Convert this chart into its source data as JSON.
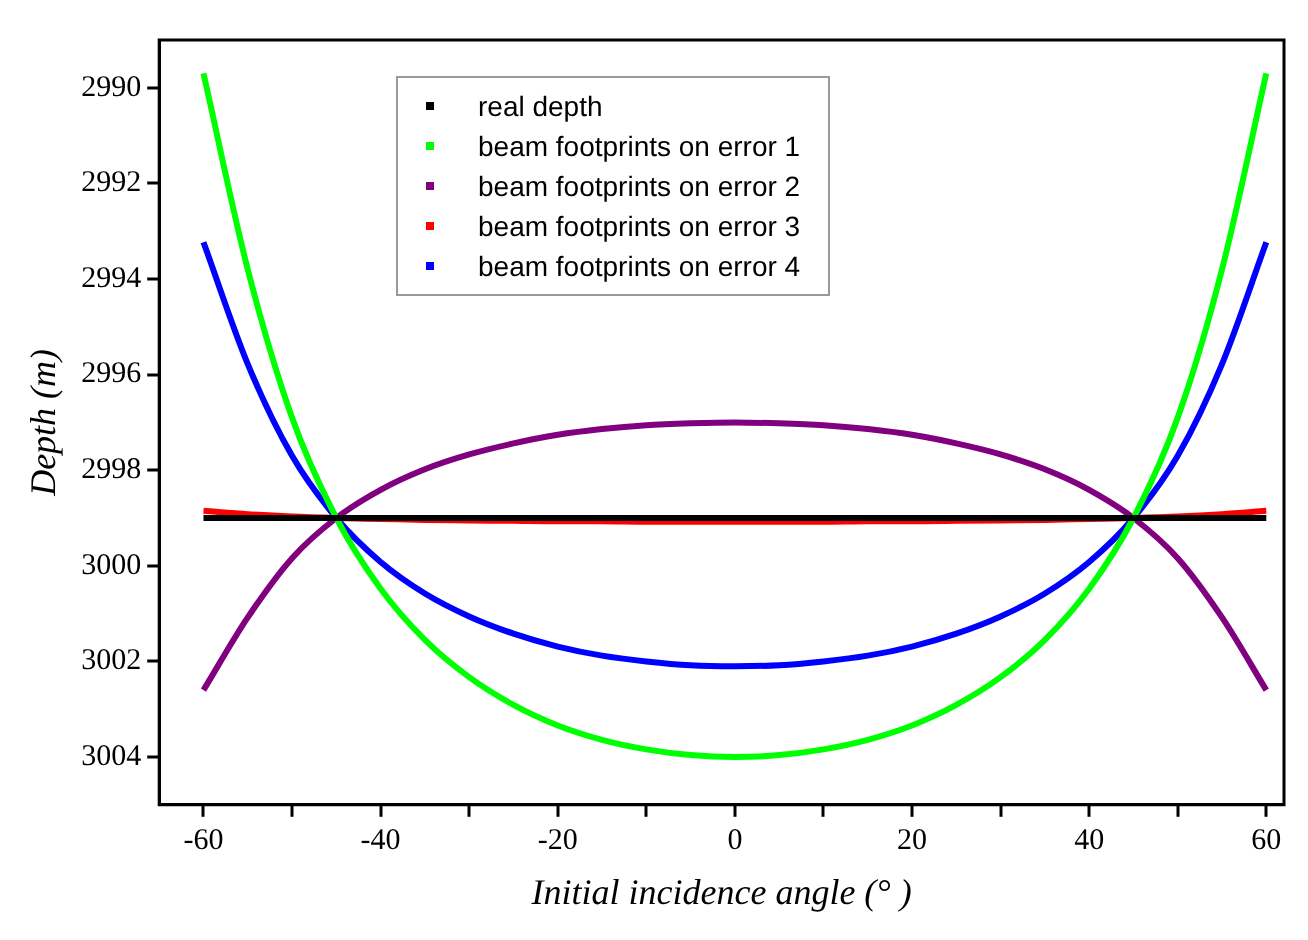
{
  "chart_data": {
    "type": "line",
    "xlabel": "Initial incidence angle (° )",
    "ylabel": "Depth (m)",
    "x": [
      -60,
      -55,
      -50,
      -45,
      -40,
      -35,
      -30,
      -25,
      -20,
      -15,
      -10,
      -5,
      0,
      5,
      10,
      15,
      20,
      25,
      30,
      35,
      40,
      45,
      50,
      55,
      60
    ],
    "series": [
      {
        "name": "real depth",
        "color": "#000000",
        "values": [
          2999,
          2999,
          2999,
          2999,
          2999,
          2999,
          2999,
          2999,
          2999,
          2999,
          2999,
          2999,
          2999,
          2999,
          2999,
          2999,
          2999,
          2999,
          2999,
          2999,
          2999,
          2999,
          2999,
          2999,
          2999
        ]
      },
      {
        "name": "beam footprints on error 1",
        "color": "#00ff00",
        "values": [
          2989.7,
          2993.8,
          2996.9,
          2999,
          3000.48,
          3001.55,
          3002.33,
          3002.91,
          3003.34,
          3003.64,
          3003.84,
          3003.96,
          3004,
          3003.96,
          3003.84,
          3003.64,
          3003.34,
          3002.91,
          3002.33,
          3001.55,
          3000.48,
          2999,
          2996.9,
          2993.8,
          2989.7
        ]
      },
      {
        "name": "beam footprints on error 2",
        "color": "#800080",
        "values": [
          3002.6,
          3001.08,
          2999.84,
          2999,
          2998.41,
          2997.98,
          2997.67,
          2997.44,
          2997.26,
          2997.14,
          2997.06,
          2997.02,
          2997,
          2997.02,
          2997.06,
          2997.14,
          2997.26,
          2997.44,
          2997.67,
          2997.98,
          2998.41,
          2999,
          2999.84,
          3001.08,
          3002.6
        ]
      },
      {
        "name": "beam footprints on error 3",
        "color": "#ff0000",
        "values": [
          2998.85,
          2998.92,
          2998.97,
          2999,
          2999.02,
          2999.04,
          2999.05,
          2999.06,
          2999.07,
          2999.07,
          2999.08,
          2999.08,
          2999.08,
          2999.08,
          2999.08,
          2999.07,
          2999.07,
          2999.06,
          2999.05,
          2999.04,
          2999.02,
          2999,
          2998.97,
          2998.92,
          2998.85
        ]
      },
      {
        "name": "beam footprints on error 4",
        "color": "#0000ff",
        "values": [
          2993.23,
          2995.78,
          2997.7,
          2999,
          2999.92,
          3000.58,
          3001.06,
          3001.42,
          3001.69,
          3001.88,
          3002,
          3002.08,
          3002.1,
          3002.08,
          3002,
          3001.88,
          3001.69,
          3001.42,
          3001.06,
          3000.58,
          2999.92,
          2999,
          2997.7,
          2995.78,
          2993.23
        ]
      }
    ],
    "xlim": [
      -65,
      62
    ],
    "ylim": [
      3005,
      2989
    ],
    "xticks": [
      -60,
      {
        "value": -50,
        "label": null
      },
      -40,
      {
        "value": -30,
        "label": null
      },
      -20,
      {
        "value": -10,
        "label": null
      },
      0,
      {
        "value": 10,
        "label": null
      },
      20,
      {
        "value": 30,
        "label": null
      },
      40,
      {
        "value": 50,
        "label": null
      },
      60
    ],
    "yticks": [
      2990,
      2992,
      2994,
      2996,
      2998,
      3000,
      3002,
      3004
    ],
    "grid": false,
    "legend": "top left"
  }
}
